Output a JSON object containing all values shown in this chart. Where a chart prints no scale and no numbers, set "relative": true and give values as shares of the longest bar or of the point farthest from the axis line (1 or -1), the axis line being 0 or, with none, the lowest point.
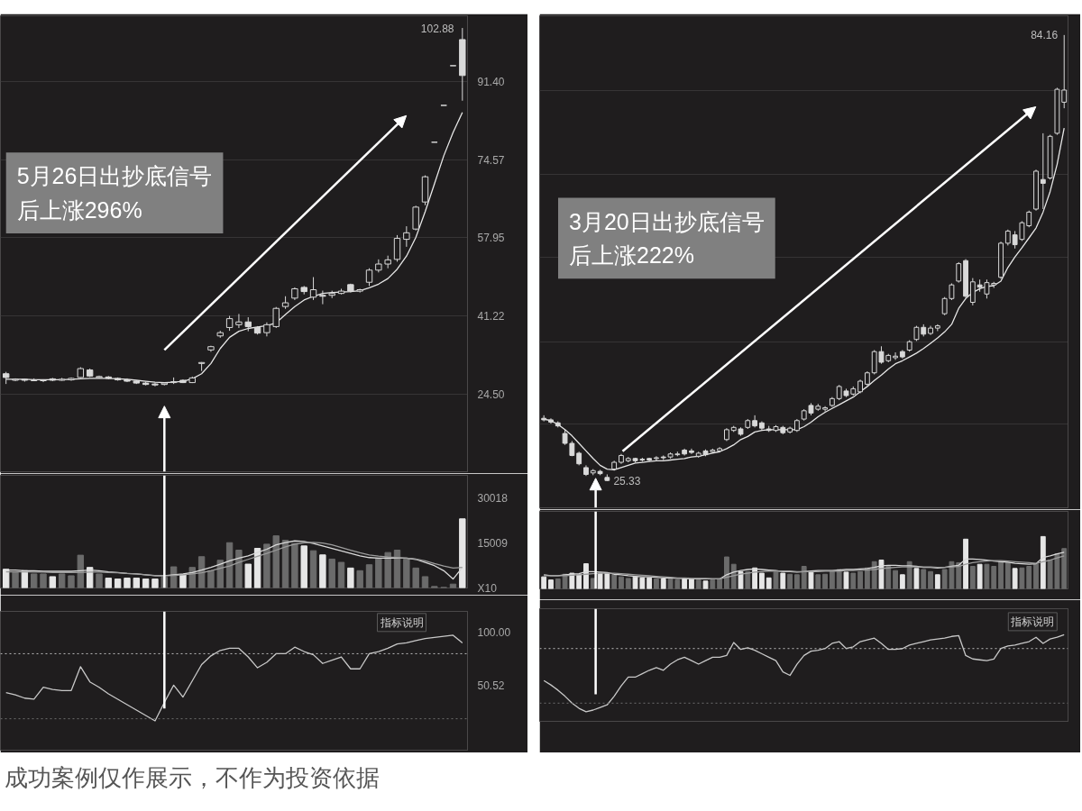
{
  "chart_data": [
    {
      "type": "candlestick",
      "categories": [
        null,
        null,
        null,
        null,
        null,
        null,
        null,
        null,
        null,
        null,
        null,
        null,
        null,
        null,
        null,
        null,
        null,
        null,
        null,
        null,
        null,
        null,
        null,
        null,
        null,
        null,
        null,
        null,
        null,
        null,
        null,
        null,
        null,
        null,
        null,
        null,
        null,
        null,
        null,
        null,
        null,
        null,
        null,
        null,
        null,
        null,
        null,
        null,
        null,
        null
      ],
      "ohlc": [
        [
          28.8,
          29.2,
          26.6,
          28.0
        ],
        [
          27.4,
          27.8,
          27.2,
          27.6
        ],
        [
          27.6,
          27.7,
          27.1,
          27.4
        ],
        [
          27.3,
          27.8,
          27.2,
          27.5
        ],
        [
          27.3,
          27.6,
          27.0,
          27.4
        ],
        [
          27.7,
          27.9,
          27.2,
          27.4
        ],
        [
          27.4,
          27.9,
          27.3,
          27.6
        ],
        [
          27.5,
          28.0,
          27.3,
          27.8
        ],
        [
          28.0,
          30.2,
          27.9,
          29.9
        ],
        [
          29.6,
          29.9,
          28.1,
          28.3
        ],
        [
          28.0,
          28.4,
          27.8,
          28.2
        ],
        [
          28.1,
          28.3,
          27.6,
          27.8
        ],
        [
          27.8,
          28.0,
          27.3,
          27.5
        ],
        [
          27.5,
          27.8,
          27.0,
          27.2
        ],
        [
          27.2,
          27.4,
          26.6,
          26.8
        ],
        [
          26.8,
          27.1,
          26.3,
          26.5
        ],
        [
          26.6,
          26.9,
          26.1,
          26.4
        ],
        [
          26.5,
          27.0,
          26.3,
          26.8
        ],
        [
          26.9,
          28.0,
          26.6,
          27.1
        ],
        [
          27.4,
          27.6,
          26.8,
          26.9
        ],
        [
          26.9,
          28.2,
          26.8,
          27.9
        ],
        [
          31.0,
          31.3,
          29.4,
          31.2
        ],
        [
          33.9,
          34.8,
          33.5,
          34.6
        ],
        [
          36.9,
          38.0,
          36.5,
          37.6
        ],
        [
          38.7,
          41.2,
          38.0,
          40.6
        ],
        [
          39.3,
          41.6,
          38.6,
          39.9
        ],
        [
          39.9,
          40.9,
          37.9,
          38.9
        ],
        [
          38.7,
          39.0,
          37.2,
          37.5
        ],
        [
          37.6,
          39.8,
          36.8,
          39.3
        ],
        [
          38.9,
          43.1,
          38.6,
          42.8
        ],
        [
          43.2,
          45.4,
          42.7,
          44.0
        ],
        [
          45.0,
          47.3,
          44.6,
          47.0
        ],
        [
          47.3,
          47.6,
          45.8,
          46.4
        ],
        [
          45.2,
          49.5,
          44.6,
          46.8
        ],
        [
          45.6,
          46.6,
          43.7,
          45.4
        ],
        [
          45.6,
          46.6,
          45.0,
          46.0
        ],
        [
          46.0,
          47.0,
          45.8,
          46.5
        ],
        [
          47.9,
          48.1,
          46.2,
          46.5
        ],
        [
          46.5,
          47.0,
          46.2,
          46.8
        ],
        [
          48.4,
          51.4,
          47.6,
          51.0
        ],
        [
          51.0,
          53.3,
          50.5,
          52.3
        ],
        [
          52.3,
          54.1,
          51.4,
          53.2
        ],
        [
          53.3,
          58.5,
          52.8,
          57.8
        ],
        [
          57.6,
          60.4,
          56.0,
          59.0
        ],
        [
          59.8,
          64.8,
          59.5,
          64.5
        ],
        [
          65.6,
          71.3,
          64.9,
          71.0
        ],
        [
          78.4,
          78.4,
          78.4,
          78.4
        ],
        [
          86.3,
          86.3,
          86.3,
          86.3
        ],
        [
          94.8,
          94.8,
          94.8,
          94.8
        ],
        [
          100.4,
          102.88,
          87.3,
          92.7
        ]
      ],
      "color": "#d9d9d9",
      "series": [
        {
          "type": "line",
          "color": "#e6e6e6",
          "values": [
            27.6,
            27.6,
            27.6,
            27.5,
            27.5,
            27.5,
            27.5,
            27.6,
            27.7,
            27.8,
            27.8,
            27.8,
            27.7,
            27.6,
            27.4,
            27.2,
            27.0,
            26.9,
            27.0,
            27.2,
            27.7,
            28.8,
            31.0,
            34.2,
            36.6,
            37.9,
            38.5,
            38.8,
            39.1,
            39.7,
            41.5,
            43.2,
            44.6,
            45.4,
            46.0,
            46.2,
            46.3,
            46.4,
            46.6,
            47.2,
            48.0,
            49.2,
            51.2,
            54.0,
            58.0,
            63.5,
            69.5,
            75.5,
            80.5,
            84.8
          ]
        }
      ],
      "ylim": [
        7.8,
        105.5
      ],
      "yticks": [
        {
          "value": 24.5,
          "label": "24.50"
        },
        41.22,
        57.95,
        74.57,
        {
          "value": 91.4,
          "label": "91.40"
        }
      ],
      "grid": "y",
      "tick_labels": "y",
      "annotations": [
        "5月26日出抄底信号后上涨296%",
        "102.88"
      ]
    },
    {
      "type": "bar",
      "categories": [
        null,
        null,
        null,
        null,
        null,
        null,
        null,
        null,
        null,
        null,
        null,
        null,
        null,
        null,
        null,
        null,
        null,
        null,
        null,
        null,
        null,
        null,
        null,
        null,
        null,
        null,
        null,
        null,
        null,
        null,
        null,
        null,
        null,
        null,
        null,
        null,
        null,
        null,
        null,
        null,
        null,
        null,
        null,
        null,
        null,
        null,
        null,
        null,
        null,
        null
      ],
      "series": [
        {
          "type": "bar",
          "values": [
            6300,
            5200,
            5800,
            4700,
            4700,
            3800,
            4700,
            4100,
            11000,
            6900,
            4700,
            3300,
            3000,
            3300,
            3300,
            3000,
            3000,
            3600,
            7100,
            4500,
            6900,
            10500,
            5800,
            9300,
            15200,
            12700,
            8000,
            13300,
            14700,
            17500,
            16000,
            14900,
            14100,
            12500,
            11100,
            9700,
            8600,
            6700,
            5800,
            7800,
            10000,
            11900,
            12700,
            9700,
            6700,
            3800,
            500,
            200,
            1300,
            23200
          ],
          "colors": [
            "#e6e6e6",
            "#6b6b6b",
            "#e6e6e6",
            "#6b6b6b",
            "#6b6b6b",
            "#e6e6e6",
            "#6b6b6b",
            "#6b6b6b",
            "#6b6b6b",
            "#e6e6e6",
            "#6b6b6b",
            "#e6e6e6",
            "#e6e6e6",
            "#e6e6e6",
            "#e6e6e6",
            "#e6e6e6",
            "#e6e6e6",
            "#6b6b6b",
            "#6b6b6b",
            "#e6e6e6",
            "#6b6b6b",
            "#6b6b6b",
            "#6b6b6b",
            "#6b6b6b",
            "#6b6b6b",
            "#6b6b6b",
            "#e6e6e6",
            "#e6e6e6",
            "#6b6b6b",
            "#6b6b6b",
            "#6b6b6b",
            "#6b6b6b",
            "#e6e6e6",
            "#6b6b6b",
            "#e6e6e6",
            "#6b6b6b",
            "#6b6b6b",
            "#e6e6e6",
            "#6b6b6b",
            "#6b6b6b",
            "#6b6b6b",
            "#6b6b6b",
            "#6b6b6b",
            "#6b6b6b",
            "#6b6b6b",
            "#6b6b6b",
            "#6b6b6b",
            "#6b6b6b",
            "#6b6b6b",
            "#e6e6e6"
          ]
        },
        {
          "type": "line",
          "color": "#d9d9d9",
          "values": [
            6000,
            6000,
            5800,
            5800,
            5600,
            5600,
            5600,
            5600,
            5800,
            6000,
            5800,
            5400,
            5200,
            4900,
            4700,
            4400,
            4100,
            4100,
            4400,
            4700,
            5200,
            6000,
            6900,
            8000,
            9100,
            10000,
            10800,
            11900,
            13000,
            14500,
            15200,
            15800,
            15600,
            14900,
            14100,
            13300,
            12400,
            11600,
            10800,
            10200,
            10000,
            10000,
            10000,
            10000,
            9600,
            8600,
            7500,
            5800,
            3000,
            6900
          ]
        },
        {
          "type": "line",
          "color": "#9c9c9c",
          "values": [
            5400,
            5400,
            5400,
            5300,
            5300,
            5200,
            5200,
            5200,
            5200,
            5300,
            5300,
            5200,
            5100,
            4900,
            4700,
            4400,
            4200,
            4100,
            4200,
            4400,
            4700,
            5100,
            5800,
            6600,
            7400,
            8600,
            9600,
            10600,
            11600,
            12700,
            13800,
            14700,
            15200,
            15300,
            15100,
            14500,
            13600,
            12700,
            11800,
            11100,
            10700,
            10400,
            10200,
            10000,
            9700,
            9100,
            8200,
            7400,
            6700,
            6900
          ]
        }
      ],
      "ylim": [
        0,
        37800
      ],
      "yticks": [
        {
          "value": 0,
          "label": "X10"
        },
        15009,
        30018
      ],
      "tick_labels": "y"
    },
    {
      "type": "line",
      "categories": [
        null,
        null,
        null,
        null,
        null,
        null,
        null,
        null,
        null,
        null,
        null,
        null,
        null,
        null,
        null,
        null,
        null,
        null,
        null,
        null,
        null,
        null,
        null,
        null,
        null,
        null,
        null,
        null,
        null,
        null,
        null,
        null,
        null,
        null,
        null,
        null,
        null,
        null,
        null,
        null,
        null,
        null,
        null,
        null,
        null,
        null,
        null,
        null,
        null,
        null
      ],
      "values": [
        44,
        42,
        39,
        38,
        49,
        47,
        46,
        46,
        68,
        54,
        49,
        43,
        38,
        33,
        28,
        23,
        18,
        35,
        51,
        40,
        55,
        70,
        78,
        83,
        85,
        85,
        77,
        67,
        72,
        80,
        80,
        86,
        82,
        79,
        71,
        74,
        77,
        66,
        66,
        80,
        82,
        85,
        89,
        90,
        92,
        94,
        95,
        96,
        97,
        90
      ],
      "color": "#c8c8c8",
      "ylim": [
        -9,
        119
      ],
      "yticks": [
        50.52,
        {
          "value": 100,
          "label": "100.00"
        }
      ],
      "ref_lines": [
        {
          "axis": "y",
          "value": 80,
          "color": "#bdbdbd",
          "line_style": "dotted"
        },
        {
          "axis": "y",
          "value": 20,
          "color": "#6e6e6e",
          "line_style": "dotted"
        }
      ],
      "tick_labels": "y",
      "annotations": [
        "指标说明",
        "成功案例仅作展示，不作为投资依据"
      ]
    },
    {
      "type": "candlestick",
      "categories": [
        null,
        null,
        null,
        null,
        null,
        null,
        null,
        null,
        null,
        null,
        null,
        null,
        null,
        null,
        null,
        null,
        null,
        null,
        null,
        null,
        null,
        null,
        null,
        null,
        null,
        null,
        null,
        null,
        null,
        null,
        null,
        null,
        null,
        null,
        null,
        null,
        null,
        null,
        null,
        null,
        null,
        null,
        null,
        null,
        null,
        null,
        null,
        null,
        null,
        null,
        null,
        null,
        null,
        null,
        null,
        null,
        null,
        null,
        null,
        null,
        null,
        null,
        null,
        null,
        null,
        null,
        null,
        null,
        null,
        null,
        null,
        null,
        null,
        null,
        null
      ],
      "ohlc": [
        [
          33.6,
          34.0,
          33.2,
          33.4
        ],
        [
          33.4,
          33.6,
          32.9,
          33.1
        ],
        [
          33.0,
          33.2,
          32.4,
          32.6
        ],
        [
          31.6,
          32.1,
          30.1,
          30.3
        ],
        [
          30.3,
          30.6,
          28.6,
          28.7
        ],
        [
          29.0,
          29.2,
          27.4,
          27.6
        ],
        [
          27.1,
          27.4,
          26.0,
          26.2
        ],
        [
          26.4,
          26.9,
          26.1,
          26.7
        ],
        [
          26.6,
          26.8,
          26.1,
          26.3
        ],
        [
          25.8,
          26.2,
          25.33,
          25.4
        ],
        [
          26.9,
          28.0,
          26.7,
          27.8
        ],
        [
          27.8,
          28.9,
          27.6,
          28.7
        ],
        [
          28.0,
          28.5,
          27.8,
          28.3
        ],
        [
          28.3,
          28.4,
          27.8,
          28.0
        ],
        [
          28.2,
          28.4,
          27.9,
          28.1
        ],
        [
          28.3,
          28.4,
          27.9,
          28.1
        ],
        [
          28.3,
          28.6,
          28.0,
          28.4
        ],
        [
          28.5,
          28.7,
          28.1,
          28.4
        ],
        [
          28.5,
          29.1,
          28.3,
          28.9
        ],
        [
          28.8,
          29.2,
          28.6,
          28.9
        ],
        [
          29.4,
          29.6,
          28.7,
          28.9
        ],
        [
          29.3,
          29.6,
          28.9,
          29.1
        ],
        [
          28.6,
          29.2,
          28.4,
          29.0
        ],
        [
          29.3,
          29.5,
          28.6,
          28.8
        ],
        [
          29.2,
          29.6,
          29.0,
          29.4
        ],
        [
          29.3,
          29.8,
          29.1,
          29.6
        ],
        [
          30.8,
          32.3,
          30.6,
          32.1
        ],
        [
          32.0,
          32.6,
          31.8,
          32.4
        ],
        [
          32.2,
          32.4,
          31.3,
          31.5
        ],
        [
          32.4,
          33.5,
          32.2,
          33.3
        ],
        [
          33.3,
          34.0,
          32.4,
          32.6
        ],
        [
          33.0,
          33.2,
          32.0,
          32.3
        ],
        [
          32.2,
          32.6,
          31.8,
          32.0
        ],
        [
          32.0,
          32.7,
          31.8,
          32.5
        ],
        [
          32.4,
          32.6,
          31.5,
          31.7
        ],
        [
          31.8,
          32.5,
          31.6,
          32.3
        ],
        [
          32.0,
          33.5,
          31.8,
          33.3
        ],
        [
          33.5,
          34.8,
          33.3,
          34.6
        ],
        [
          35.3,
          35.6,
          34.0,
          34.3
        ],
        [
          34.8,
          35.5,
          34.6,
          35.2
        ],
        [
          34.8,
          35.2,
          34.5,
          35.0
        ],
        [
          35.3,
          36.4,
          35.1,
          36.2
        ],
        [
          36.2,
          38.0,
          36.0,
          37.8
        ],
        [
          37.2,
          37.5,
          36.4,
          36.6
        ],
        [
          36.8,
          37.8,
          36.6,
          37.5
        ],
        [
          37.1,
          38.7,
          36.9,
          38.5
        ],
        [
          38.1,
          39.8,
          37.9,
          39.6
        ],
        [
          39.6,
          42.6,
          39.4,
          42.4
        ],
        [
          42.4,
          43.1,
          40.8,
          41.0
        ],
        [
          41.2,
          42.1,
          41.0,
          41.9
        ],
        [
          41.6,
          42.3,
          41.3,
          41.8
        ],
        [
          42.4,
          42.6,
          41.5,
          41.7
        ],
        [
          42.6,
          43.9,
          42.4,
          43.7
        ],
        [
          44.0,
          45.8,
          43.8,
          45.6
        ],
        [
          45.6,
          46.0,
          44.4,
          44.7
        ],
        [
          44.8,
          45.8,
          44.6,
          45.5
        ],
        [
          45.5,
          46.0,
          45.1,
          45.8
        ],
        [
          47.4,
          49.6,
          47.2,
          49.4
        ],
        [
          49.4,
          51.4,
          49.2,
          51.2
        ],
        [
          51.7,
          54.2,
          51.5,
          54.0
        ],
        [
          54.4,
          54.6,
          49.5,
          49.7
        ],
        [
          48.9,
          52.1,
          48.5,
          51.6
        ],
        [
          51.2,
          51.9,
          50.3,
          50.9
        ],
        [
          50.0,
          51.9,
          49.4,
          51.5
        ],
        [
          51.2,
          51.6,
          50.8,
          51.4
        ],
        [
          52.2,
          56.9,
          52.0,
          56.7
        ],
        [
          56.7,
          58.5,
          56.4,
          58.3
        ],
        [
          57.8,
          58.3,
          56.0,
          56.5
        ],
        [
          57.2,
          59.6,
          57.0,
          59.4
        ],
        [
          59.0,
          61.0,
          58.8,
          60.8
        ],
        [
          61.2,
          66.4,
          61.0,
          66.2
        ],
        [
          65.1,
          71.2,
          61.2,
          64.6
        ],
        [
          65.3,
          71.0,
          65.1,
          70.8
        ],
        [
          71.2,
          77.2,
          71.0,
          77.0
        ],
        [
          75.3,
          84.16,
          74.5,
          76.9
        ]
      ],
      "color": "#d9d9d9",
      "series": [
        {
          "type": "line",
          "color": "#e6e6e6",
          "values": [
            33.5,
            33.3,
            32.8,
            32.1,
            31.3,
            30.3,
            29.3,
            28.3,
            27.4,
            26.9,
            26.8,
            27.1,
            27.4,
            27.7,
            27.8,
            27.9,
            28.0,
            28.0,
            28.1,
            28.2,
            28.3,
            28.5,
            28.6,
            28.8,
            29.0,
            29.2,
            29.6,
            30.1,
            30.8,
            31.2,
            31.8,
            32.0,
            32.1,
            32.1,
            32.1,
            32.1,
            32.1,
            32.5,
            33.1,
            33.8,
            34.4,
            34.9,
            35.4,
            35.9,
            36.4,
            37.1,
            37.8,
            38.6,
            39.3,
            40.1,
            40.8,
            41.2,
            41.7,
            42.2,
            42.8,
            43.5,
            44.2,
            45.0,
            46.0,
            48.1,
            49.4,
            50.2,
            50.7,
            51.0,
            51.1,
            51.7,
            53.5,
            54.9,
            56.1,
            57.4,
            58.7,
            60.8,
            63.5,
            67.1,
            71.9
          ]
        }
      ],
      "ylim": [
        21.8,
        86.7
      ],
      "yticks": [
        {
          "value": 32.9,
          "label": null
        },
        {
          "value": 43.7,
          "label": null
        },
        {
          "value": 54.8,
          "label": null
        },
        {
          "value": 65.8,
          "label": null
        },
        {
          "value": 76.8,
          "label": null
        }
      ],
      "grid": "y",
      "tick_labels": false,
      "annotations": [
        "3月20日出抄底信号后上涨222%",
        "84.16",
        "25.33"
      ]
    },
    {
      "type": "bar",
      "relative": true,
      "categories": [
        null,
        null,
        null,
        null,
        null,
        null,
        null,
        null,
        null,
        null,
        null,
        null,
        null,
        null,
        null,
        null,
        null,
        null,
        null,
        null,
        null,
        null,
        null,
        null,
        null,
        null,
        null,
        null,
        null,
        null,
        null,
        null,
        null,
        null,
        null,
        null,
        null,
        null,
        null,
        null,
        null,
        null,
        null,
        null,
        null,
        null,
        null,
        null,
        null,
        null,
        null,
        null,
        null,
        null,
        null,
        null,
        null,
        null,
        null,
        null,
        null,
        null,
        null,
        null,
        null,
        null,
        null,
        null,
        null,
        null,
        null,
        null,
        null,
        null,
        null
      ],
      "series": [
        {
          "type": "bar",
          "values": [
            0.23,
            0.17,
            0.19,
            0.28,
            0.3,
            0.27,
            0.48,
            0.2,
            0.3,
            0.3,
            0.27,
            0.23,
            0.2,
            0.23,
            0.21,
            0.21,
            0.19,
            0.19,
            0.19,
            0.17,
            0.19,
            0.19,
            0.17,
            0.15,
            0.17,
            0.19,
            0.61,
            0.47,
            0.33,
            0.33,
            0.4,
            0.3,
            0.21,
            0.32,
            0.3,
            0.28,
            0.27,
            0.43,
            0.33,
            0.27,
            0.28,
            0.33,
            0.37,
            0.32,
            0.3,
            0.33,
            0.4,
            0.52,
            0.55,
            0.43,
            0.35,
            0.27,
            0.52,
            0.39,
            0.37,
            0.33,
            0.27,
            0.37,
            0.52,
            0.5,
            0.95,
            0.43,
            0.47,
            0.47,
            0.43,
            0.52,
            0.5,
            0.39,
            0.4,
            0.43,
            0.48,
            1,
            0.55,
            0.67,
            0.77
          ],
          "colors": [
            "#e6e6e6",
            "#e6e6e6",
            "#6b6b6b",
            "#6b6b6b",
            "#e6e6e6",
            "#e6e6e6",
            "#e6e6e6",
            "#6b6b6b",
            "#e6e6e6",
            "#e6e6e6",
            "#6b6b6b",
            "#6b6b6b",
            "#6b6b6b",
            "#e6e6e6",
            "#e6e6e6",
            "#e6e6e6",
            "#6b6b6b",
            "#e6e6e6",
            "#6b6b6b",
            "#6b6b6b",
            "#e6e6e6",
            "#e6e6e6",
            "#6b6b6b",
            "#e6e6e6",
            "#6b6b6b",
            "#6b6b6b",
            "#6b6b6b",
            "#6b6b6b",
            "#e6e6e6",
            "#6b6b6b",
            "#e6e6e6",
            "#e6e6e6",
            "#e6e6e6",
            "#6b6b6b",
            "#e6e6e6",
            "#6b6b6b",
            "#6b6b6b",
            "#6b6b6b",
            "#e6e6e6",
            "#6b6b6b",
            "#6b6b6b",
            "#6b6b6b",
            "#6b6b6b",
            "#e6e6e6",
            "#6b6b6b",
            "#6b6b6b",
            "#6b6b6b",
            "#6b6b6b",
            "#e6e6e6",
            "#6b6b6b",
            "#6b6b6b",
            "#e6e6e6",
            "#6b6b6b",
            "#e6e6e6",
            "#6b6b6b",
            "#6b6b6b",
            "#e6e6e6",
            "#6b6b6b",
            "#6b6b6b",
            "#6b6b6b",
            "#e6e6e6",
            "#6b6b6b",
            "#e6e6e6",
            "#6b6b6b",
            "#6b6b6b",
            "#6b6b6b",
            "#6b6b6b",
            "#e6e6e6",
            "#6b6b6b",
            "#6b6b6b",
            "#6b6b6b",
            "#e6e6e6",
            "#6b6b6b",
            "#6b6b6b",
            "#6b6b6b"
          ]
        },
        {
          "type": "line",
          "color": "#d9d9d9",
          "values": [
            0.27,
            0.25,
            0.25,
            0.27,
            0.28,
            0.29,
            0.33,
            0.33,
            0.32,
            0.31,
            0.28,
            0.27,
            0.25,
            0.24,
            0.23,
            0.23,
            0.22,
            0.21,
            0.21,
            0.2,
            0.2,
            0.19,
            0.19,
            0.19,
            0.19,
            0.19,
            0.27,
            0.32,
            0.35,
            0.37,
            0.38,
            0.37,
            0.36,
            0.35,
            0.33,
            0.33,
            0.32,
            0.33,
            0.34,
            0.35,
            0.35,
            0.35,
            0.36,
            0.37,
            0.37,
            0.38,
            0.39,
            0.41,
            0.44,
            0.45,
            0.45,
            0.44,
            0.44,
            0.43,
            0.41,
            0.41,
            0.4,
            0.41,
            0.43,
            0.45,
            0.57,
            0.57,
            0.56,
            0.55,
            0.53,
            0.52,
            0.51,
            0.49,
            0.48,
            0.47,
            0.48,
            0.6,
            0.63,
            0.67,
            0.7
          ]
        },
        {
          "type": "line",
          "color": "#9c9c9c",
          "values": [
            0.25,
            0.25,
            0.25,
            0.25,
            0.26,
            0.27,
            0.28,
            0.29,
            0.3,
            0.3,
            0.3,
            0.29,
            0.28,
            0.27,
            0.26,
            0.25,
            0.24,
            0.23,
            0.22,
            0.21,
            0.21,
            0.2,
            0.2,
            0.2,
            0.19,
            0.19,
            0.22,
            0.25,
            0.28,
            0.3,
            0.32,
            0.33,
            0.34,
            0.34,
            0.34,
            0.34,
            0.33,
            0.33,
            0.33,
            0.33,
            0.34,
            0.34,
            0.34,
            0.35,
            0.35,
            0.36,
            0.36,
            0.37,
            0.39,
            0.4,
            0.41,
            0.42,
            0.42,
            0.42,
            0.42,
            0.42,
            0.41,
            0.41,
            0.42,
            0.43,
            0.47,
            0.5,
            0.52,
            0.53,
            0.54,
            0.54,
            0.53,
            0.52,
            0.51,
            0.5,
            0.49,
            0.52,
            0.55,
            0.59,
            0.63
          ]
        }
      ],
      "tick_labels": false
    },
    {
      "type": "line",
      "relative": true,
      "categories": [
        null,
        null,
        null,
        null,
        null,
        null,
        null,
        null,
        null,
        null,
        null,
        null,
        null,
        null,
        null,
        null,
        null,
        null,
        null,
        null,
        null,
        null,
        null,
        null,
        null,
        null,
        null,
        null,
        null,
        null,
        null,
        null,
        null,
        null,
        null,
        null,
        null,
        null,
        null,
        null,
        null,
        null,
        null,
        null,
        null,
        null,
        null,
        null,
        null,
        null,
        null,
        null,
        null,
        null,
        null,
        null,
        null,
        null,
        null,
        null,
        null,
        null,
        null,
        null,
        null,
        null,
        null,
        null,
        null,
        null,
        null,
        null,
        null,
        null,
        null
      ],
      "values": [
        0.47,
        0.42,
        0.36,
        0.29,
        0.21,
        0.15,
        0.11,
        0.13,
        0.16,
        0.19,
        0.29,
        0.41,
        0.51,
        0.51,
        0.55,
        0.59,
        0.62,
        0.59,
        0.66,
        0.71,
        0.74,
        0.7,
        0.66,
        0.7,
        0.74,
        0.74,
        0.76,
        0.91,
        0.83,
        0.85,
        0.82,
        0.78,
        0.74,
        0.7,
        0.57,
        0.53,
        0.66,
        0.76,
        0.81,
        0.82,
        0.84,
        0.9,
        0.92,
        0.84,
        0.86,
        0.92,
        0.94,
        0.96,
        0.9,
        0.83,
        0.83,
        0.84,
        0.88,
        0.9,
        0.92,
        0.94,
        0.95,
        0.96,
        0.98,
        0.99,
        0.76,
        0.72,
        0.71,
        0.7,
        0.72,
        0.84,
        0.87,
        0.88,
        0.9,
        0.92,
        0.97,
        0.9,
        0.95,
        0.97,
        1
      ],
      "color": "#c8c8c8",
      "ref_lines": [
        {
          "axis": "y",
          "value": 0.84,
          "color": "#bdbdbd",
          "line_style": "dotted"
        },
        {
          "axis": "y",
          "value": 0.21,
          "color": "#6e6e6e",
          "line_style": "dotted"
        }
      ],
      "tick_labels": false,
      "annotations": [
        "指标说明"
      ]
    }
  ]
}
